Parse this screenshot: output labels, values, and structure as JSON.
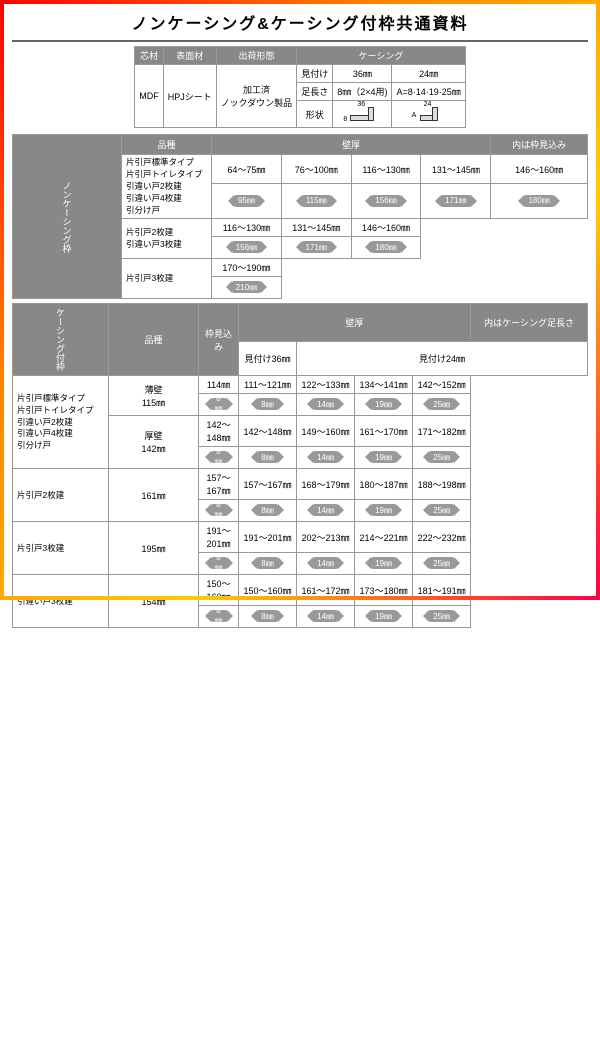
{
  "title": "ノンケーシング&ケーシング付枠共通資料",
  "header": {
    "cols": [
      "芯材",
      "表面材",
      "出荷形態",
      "ケーシング"
    ],
    "r1": [
      "MDF",
      "HPJシート",
      "加工済\nノックダウン製品",
      "見付け",
      "36㎜",
      "24㎜"
    ],
    "r2": [
      "足長さ",
      "8㎜（2×4用)",
      "A=8·14·19·25㎜"
    ],
    "r3_label": "形状",
    "dim36": "36",
    "dim8": "8",
    "dim24": "24",
    "dimA": "A"
  },
  "section1": {
    "vlabel": "ノンケーシング枠",
    "hdr": [
      "品種",
      "壁厚"
    ],
    "note": "内は枠見込み",
    "prod1": "片引戸標準タイプ\n片引戸トイレタイプ\n引違い戸2枚建\n引違い戸4枚建\n引分け戸",
    "ranges1": [
      "64～75㎜",
      "76～100㎜",
      "116～130㎜",
      "131～145㎜",
      "146～160㎜"
    ],
    "arrows1": [
      "95㎜",
      "115㎜",
      "156㎜",
      "171㎜",
      "180㎜"
    ],
    "prod2": "片引戸2枚建\n引違い戸3枚建",
    "ranges2": [
      "116～130㎜",
      "131～145㎜",
      "146～160㎜"
    ],
    "arrows2": [
      "156㎜",
      "171㎜",
      "180㎜"
    ],
    "prod3": "片引戸3枚建",
    "ranges3": [
      "170～190㎜"
    ],
    "arrows3": [
      "210㎜"
    ]
  },
  "section2": {
    "vlabel": "ケーシング付枠",
    "hdr": [
      "品種",
      "枠見込み",
      "壁厚"
    ],
    "note": "内はケーシング足長さ",
    "subhdr": [
      "見付け36㎜",
      "見付け24㎜"
    ],
    "rows": [
      {
        "prod": "片引戸標準タイプ\n片引戸トイレタイプ\n引違い戸2枚建\n引違い戸4枚建\n引分け戸",
        "sub": [
          {
            "wall": "薄壁\n115㎜",
            "ranges": [
              "114㎜",
              "111～121㎜",
              "122～133㎜",
              "134～141㎜",
              "142～152㎜"
            ],
            "arrows": [
              "8㎜",
              "8㎜",
              "14㎜",
              "19㎜",
              "25㎜"
            ]
          },
          {
            "wall": "厚壁\n142㎜",
            "ranges": [
              "142～148㎜",
              "142～148㎜",
              "149～160㎜",
              "161～170㎜",
              "171～182㎜"
            ],
            "arrows": [
              "8㎜",
              "8㎜",
              "14㎜",
              "19㎜",
              "25㎜"
            ]
          }
        ]
      },
      {
        "prod": "片引戸2枚建",
        "sub": [
          {
            "wall": "161㎜",
            "ranges": [
              "157～167㎜",
              "157～167㎜",
              "168～179㎜",
              "180～187㎜",
              "188～198㎜"
            ],
            "arrows": [
              "8㎜",
              "8㎜",
              "14㎜",
              "19㎜",
              "25㎜"
            ]
          }
        ]
      },
      {
        "prod": "片引戸3枚建",
        "sub": [
          {
            "wall": "195㎜",
            "ranges": [
              "191～201㎜",
              "191～201㎜",
              "202～213㎜",
              "214～221㎜",
              "222～232㎜"
            ],
            "arrows": [
              "8㎜",
              "8㎜",
              "14㎜",
              "19㎜",
              "25㎜"
            ]
          }
        ]
      },
      {
        "prod": "引違い戸3枚建",
        "sub": [
          {
            "wall": "154㎜",
            "ranges": [
              "150～160㎜",
              "150～160㎜",
              "161～172㎜",
              "173～180㎜",
              "181～191㎜"
            ],
            "arrows": [
              "8㎜",
              "8㎜",
              "14㎜",
              "19㎜",
              "25㎜"
            ]
          }
        ]
      }
    ]
  }
}
